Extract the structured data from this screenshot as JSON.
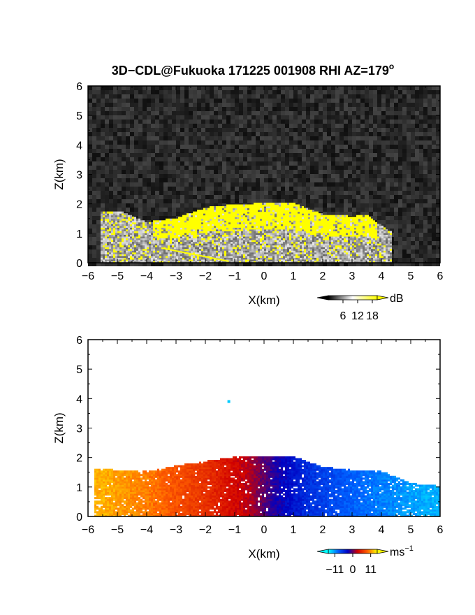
{
  "title": "3D−CDL@Fukuoka 171225 001908 RHI AZ=179",
  "title_superscript": "o",
  "chart_data": [
    {
      "type": "heatmap",
      "panel": "reflectivity",
      "xlabel": "X(km)",
      "ylabel": "Z(km)",
      "xlim": [
        -6,
        6
      ],
      "ylim": [
        0,
        6
      ],
      "xticks": [
        -6,
        -5,
        -4,
        -3,
        -2,
        -1,
        0,
        1,
        2,
        3,
        4,
        5,
        6
      ],
      "yticks": [
        0,
        1,
        2,
        3,
        4,
        5,
        6
      ],
      "xtick_labels": [
        "−6",
        "−5",
        "−4",
        "−3",
        "−2",
        "−1",
        "0",
        "1",
        "2",
        "3",
        "4",
        "5",
        "6"
      ],
      "ytick_labels": [
        "0",
        "1",
        "2",
        "3",
        "4",
        "5",
        "6"
      ],
      "colorbar": {
        "unit": "dB",
        "ticks": [
          6,
          12,
          18
        ],
        "tick_labels": [
          "6",
          "12",
          "18"
        ],
        "range": [
          0,
          20
        ],
        "colors": [
          "#000000",
          "#ffffff",
          "#ffff00"
        ]
      },
      "echo_top_km": [
        {
          "x": -4.9,
          "z": 1.7
        },
        {
          "x": -4.0,
          "z": 1.35
        },
        {
          "x": -3.0,
          "z": 1.5
        },
        {
          "x": -2.0,
          "z": 1.85
        },
        {
          "x": -1.0,
          "z": 1.95
        },
        {
          "x": 0.0,
          "z": 2.0
        },
        {
          "x": 1.0,
          "z": 2.0
        },
        {
          "x": 2.0,
          "z": 1.6
        },
        {
          "x": 3.0,
          "z": 1.55
        },
        {
          "x": 3.5,
          "z": 1.6
        },
        {
          "x": 4.2,
          "z": 1.05
        }
      ]
    },
    {
      "type": "heatmap",
      "panel": "doppler_velocity",
      "xlabel": "X(km)",
      "ylabel": "Z(km)",
      "xlim": [
        -6,
        6
      ],
      "ylim": [
        0,
        6
      ],
      "xticks": [
        -6,
        -5,
        -4,
        -3,
        -2,
        -1,
        0,
        1,
        2,
        3,
        4,
        5,
        6
      ],
      "yticks": [
        0,
        1,
        2,
        3,
        4,
        5,
        6
      ],
      "xtick_labels": [
        "−6",
        "−5",
        "−4",
        "−3",
        "−2",
        "−1",
        "0",
        "1",
        "2",
        "3",
        "4",
        "5",
        "6"
      ],
      "ytick_labels": [
        "0",
        "1",
        "2",
        "3",
        "4",
        "5",
        "6"
      ],
      "colorbar": {
        "unit": "ms",
        "unit_superscript": "−1",
        "ticks": [
          -11,
          0,
          11
        ],
        "tick_labels": [
          "−11",
          "0",
          "11"
        ],
        "range": [
          -15,
          15
        ],
        "colors": [
          "#00ffff",
          "#0060ff",
          "#0000c0",
          "#d00000",
          "#ff6000",
          "#ffff00"
        ]
      },
      "velocity_ms": [
        {
          "x": -5.5,
          "v": 12
        },
        {
          "x": -4.0,
          "v": 10
        },
        {
          "x": -2.0,
          "v": 6
        },
        {
          "x": -0.5,
          "v": 2
        },
        {
          "x": 0.3,
          "v": -2
        },
        {
          "x": 1.5,
          "v": -6
        },
        {
          "x": 3.0,
          "v": -9
        },
        {
          "x": 5.5,
          "v": -12
        }
      ],
      "echo_top_km": [
        {
          "x": -6.0,
          "z": 1.6
        },
        {
          "x": -4.0,
          "z": 1.5
        },
        {
          "x": -3.0,
          "z": 1.7
        },
        {
          "x": -2.0,
          "z": 1.85
        },
        {
          "x": -1.0,
          "z": 2.0
        },
        {
          "x": 0.0,
          "z": 2.0
        },
        {
          "x": 1.0,
          "z": 2.0
        },
        {
          "x": 2.0,
          "z": 1.65
        },
        {
          "x": 3.0,
          "z": 1.55
        },
        {
          "x": 4.0,
          "z": 1.5
        },
        {
          "x": 5.0,
          "z": 1.1
        },
        {
          "x": 6.0,
          "z": 1.0
        }
      ],
      "isolated_point": {
        "x": -1.2,
        "z": 3.9,
        "v": -13
      }
    }
  ]
}
